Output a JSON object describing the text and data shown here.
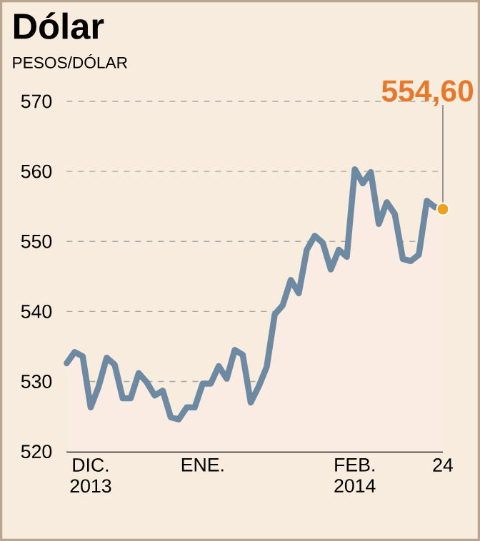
{
  "chart_data": {
    "type": "area",
    "title": "Dólar",
    "ylabel": "PESOS/DÓLAR",
    "categories": [
      null,
      null,
      null,
      "DIC. 2013",
      null,
      null,
      null,
      null,
      null,
      null,
      null,
      null,
      null,
      null,
      null,
      null,
      null,
      "ENE.",
      null,
      null,
      null,
      null,
      null,
      null,
      null,
      null,
      null,
      null,
      null,
      null,
      null,
      null,
      null,
      null,
      null,
      null,
      "FEB. 2014",
      null,
      null,
      null,
      null,
      null,
      null,
      null,
      null,
      null,
      null,
      "24"
    ],
    "series": [
      {
        "color": "#6e8aa3",
        "values": [
          532.6,
          534.2,
          533.6,
          526.3,
          529.3,
          533.4,
          532.4,
          527.6,
          527.6,
          531.2,
          529.9,
          528.0,
          528.7,
          524.9,
          524.6,
          526.3,
          526.3,
          529.7,
          529.7,
          532.2,
          530.4,
          534.5,
          533.8,
          527.0,
          529.3,
          532.1,
          539.6,
          540.9,
          544.5,
          542.6,
          548.8,
          550.8,
          549.8,
          546.0,
          548.8,
          547.8,
          560.3,
          558.3,
          559.9,
          552.5,
          555.6,
          553.9,
          547.5,
          547.2,
          548.1,
          555.8,
          554.9,
          554.6
        ]
      }
    ],
    "ylim": [
      520,
      570
    ],
    "yticks": [
      520,
      530,
      540,
      550,
      560,
      570
    ],
    "grid": "y",
    "annotations": [
      {
        "text": "554,60",
        "x": "24",
        "y": 554.6
      }
    ]
  }
}
